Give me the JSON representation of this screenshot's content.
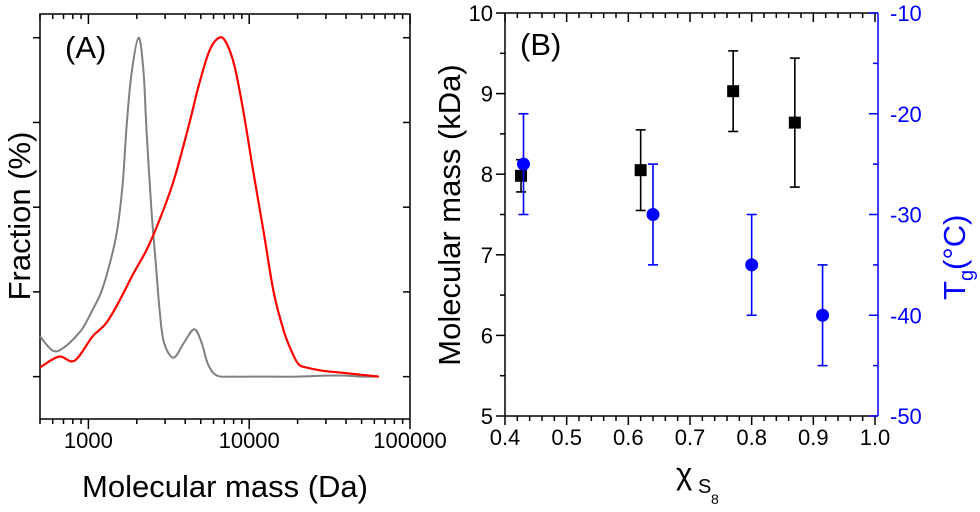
{
  "chart_data": [
    {
      "panel": "A",
      "type": "line",
      "panel_label": "(A)",
      "title": "",
      "xlabel": "Molecular mass (Da)",
      "ylabel": "Fraction (%)",
      "xscale": "log",
      "xlim": [
        500,
        100000
      ],
      "ylim": [
        -12.5,
        107
      ],
      "x_ticks": [
        1000,
        10000,
        100000
      ],
      "x_tick_labels": [
        "1000",
        "10000",
        "100000"
      ],
      "y_ticks": [
        0,
        25,
        50,
        75,
        100
      ],
      "y_tick_labels": [],
      "grid": false,
      "legend": null,
      "series": [
        {
          "name": "gray-distribution",
          "color": "#808080",
          "x": [
            500,
            600,
            700,
            900,
            1050,
            1200,
            1350,
            1500,
            1630,
            1730,
            1850,
            2050,
            2200,
            2300,
            2470,
            2620,
            2780,
            2950,
            3380,
            3940,
            4550,
            5050,
            5550,
            6300,
            8000,
            12000,
            20000,
            30000,
            40000,
            50000,
            64000
          ],
          "y": [
            11.9,
            7.7,
            8.5,
            13.6,
            19.3,
            24.9,
            32.9,
            42.4,
            56.4,
            74.2,
            89.0,
            100.0,
            90.2,
            72.4,
            48.7,
            33.8,
            19.0,
            10.1,
            5.6,
            10.1,
            14.0,
            10.1,
            3.6,
            0.3,
            0.0,
            0.0,
            0.0,
            0.3,
            0.3,
            0.0,
            0.0
          ]
        },
        {
          "name": "red-distribution",
          "color": "#ff0000",
          "x": [
            500,
            655,
            820,
            1050,
            1160,
            1300,
            1540,
            1900,
            2300,
            2740,
            3380,
            4200,
            4850,
            5650,
            6500,
            7200,
            8100,
            9200,
            10600,
            12300,
            14200,
            16500,
            18500,
            20300,
            22600,
            28000,
            37000,
            64000
          ],
          "y": [
            2.7,
            5.9,
            4.7,
            11.6,
            13.6,
            16.0,
            21.9,
            30.3,
            37.4,
            45.7,
            57.6,
            73.9,
            85.8,
            96.1,
            100.0,
            98.5,
            91.7,
            78.3,
            60.5,
            42.7,
            24.9,
            13.1,
            7.1,
            3.6,
            2.7,
            1.8,
            1.2,
            0.0
          ]
        }
      ]
    },
    {
      "panel": "B",
      "type": "scatter",
      "panel_label": "(B)",
      "title": "",
      "xlabel": "χS8",
      "xlabel_main": "χ",
      "xlabel_sub": "S",
      "xlabel_subsub": "8",
      "ylabel": "Molecular mass (kDa)",
      "y2label_main": "T",
      "y2label_sub": "g",
      "y2label_rest": " (°C)",
      "xlim": [
        0.4,
        1.005
      ],
      "ylim": [
        5,
        10
      ],
      "y2lim": [
        -50,
        -10
      ],
      "x_ticks": [
        0.4,
        0.5,
        0.6,
        0.7,
        0.8,
        0.9,
        1.0
      ],
      "x_tick_labels": [
        "0.4",
        "0.5",
        "0.6",
        "0.7",
        "0.8",
        "0.9",
        "1.0"
      ],
      "y_ticks": [
        5,
        6,
        7,
        8,
        9,
        10
      ],
      "y_tick_labels": [
        "5",
        "6",
        "7",
        "8",
        "9",
        "10"
      ],
      "y2_ticks": [
        -50,
        -40,
        -30,
        -20,
        -10
      ],
      "y2_tick_labels": [
        "-50",
        "-40",
        "-30",
        "-20",
        "-10"
      ],
      "grid": false,
      "legend": null,
      "series": [
        {
          "name": "Molecular mass",
          "axis": "left",
          "marker": "square",
          "color": "#000000",
          "x": [
            0.426,
            0.62,
            0.77,
            0.87
          ],
          "y": [
            7.98,
            8.05,
            9.03,
            8.64
          ],
          "yerr": [
            0.2,
            0.5,
            0.5,
            0.8
          ]
        },
        {
          "name": "Tg",
          "axis": "right",
          "marker": "circle",
          "color": "#0000ff",
          "x": [
            0.43,
            0.64,
            0.8,
            0.915
          ],
          "y": [
            -25,
            -30,
            -35,
            -40
          ],
          "yerr": [
            5,
            5,
            5,
            5
          ]
        }
      ]
    }
  ]
}
